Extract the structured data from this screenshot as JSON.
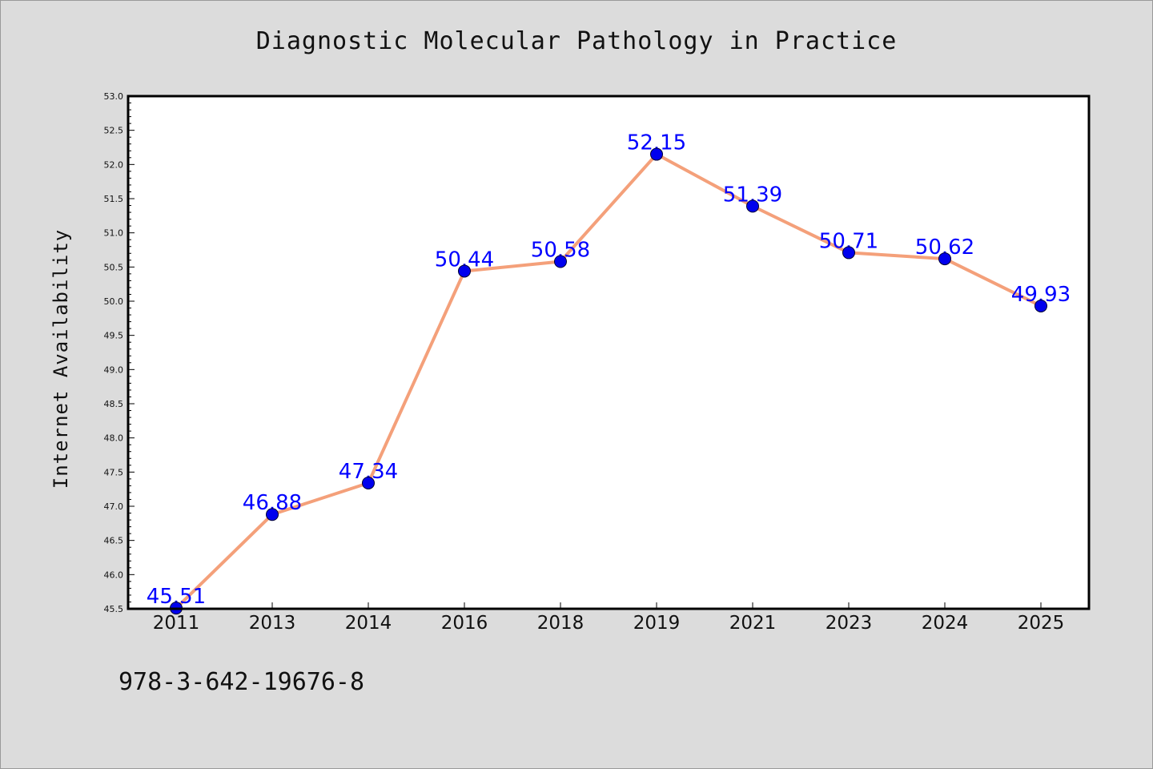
{
  "chart_data": {
    "type": "line",
    "title": "Diagnostic Molecular Pathology in Practice",
    "xlabel": "",
    "ylabel": "Internet Availability",
    "categories": [
      "2011",
      "2013",
      "2014",
      "2016",
      "2018",
      "2019",
      "2021",
      "2023",
      "2024",
      "2025"
    ],
    "series": [
      {
        "values": [
          45.51,
          46.88,
          47.34,
          50.44,
          50.58,
          52.15,
          51.39,
          50.71,
          50.62,
          49.93
        ]
      }
    ],
    "data_labels": [
      "45.51",
      "46.88",
      "47.34",
      "50.44",
      "50.58",
      "52.15",
      "51.39",
      "50.71",
      "50.62",
      "49.93"
    ],
    "ylim": [
      45.5,
      53.0
    ],
    "y_ticks": [
      "45.5",
      "46.0",
      "46.5",
      "47.0",
      "47.5",
      "48.0",
      "48.5",
      "49.0",
      "49.5",
      "50.0",
      "50.5",
      "51.0",
      "51.5",
      "52.0",
      "52.5",
      "53.0"
    ],
    "grid": false,
    "line_color": "#f4a07a",
    "marker_color": "#0000ee",
    "label_color": "#0000ff"
  },
  "footer": {
    "isbn": "978-3-642-19676-8"
  }
}
